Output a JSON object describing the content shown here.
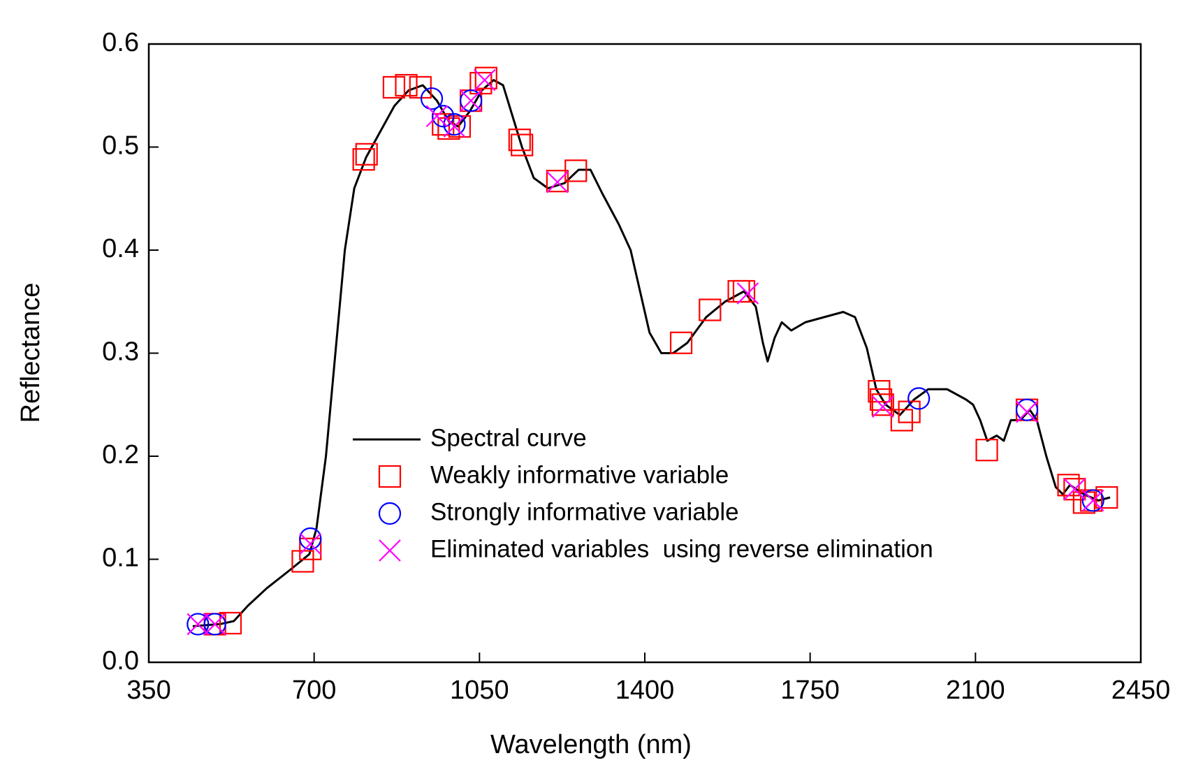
{
  "chart_data": {
    "type": "line",
    "xlabel": "Wavelength (nm)",
    "ylabel": "Reflectance",
    "xlim": [
      350,
      2450
    ],
    "xticks": [
      350,
      700,
      1050,
      1400,
      1750,
      2100,
      2450
    ],
    "ylim": [
      0,
      0.6
    ],
    "yticks": [
      {
        "value": 0,
        "label": "0.0"
      },
      0.1,
      0.2,
      0.3,
      0.4,
      0.5,
      0.6
    ],
    "legend": "inside-lower-center",
    "series": [
      {
        "name": "Spectral curve",
        "kind": "line",
        "color": "#000000",
        "x": [
          443,
          470,
          500,
          530,
          560,
          600,
          650,
          690,
          705,
          725,
          745,
          765,
          785,
          810,
          840,
          870,
          900,
          930,
          960,
          985,
          1005,
          1030,
          1055,
          1080,
          1100,
          1120,
          1140,
          1165,
          1195,
          1230,
          1260,
          1285,
          1310,
          1345,
          1370,
          1390,
          1410,
          1435,
          1460,
          1490,
          1530,
          1570,
          1610,
          1635,
          1650,
          1660,
          1675,
          1690,
          1710,
          1740,
          1780,
          1820,
          1845,
          1870,
          1890,
          1910,
          1940,
          1970,
          2000,
          2040,
          2080,
          2095,
          2110,
          2125,
          2145,
          2160,
          2175,
          2195,
          2215,
          2230,
          2250,
          2270,
          2285,
          2300,
          2330,
          2360,
          2385
        ],
        "values": [
          0.035,
          0.036,
          0.037,
          0.04,
          0.055,
          0.072,
          0.09,
          0.105,
          0.13,
          0.2,
          0.3,
          0.4,
          0.46,
          0.49,
          0.515,
          0.54,
          0.555,
          0.56,
          0.545,
          0.525,
          0.52,
          0.535,
          0.555,
          0.565,
          0.56,
          0.53,
          0.5,
          0.47,
          0.46,
          0.465,
          0.478,
          0.478,
          0.455,
          0.425,
          0.4,
          0.36,
          0.32,
          0.3,
          0.3,
          0.31,
          0.335,
          0.35,
          0.36,
          0.345,
          0.31,
          0.292,
          0.315,
          0.33,
          0.322,
          0.33,
          0.335,
          0.34,
          0.335,
          0.305,
          0.265,
          0.25,
          0.24,
          0.255,
          0.265,
          0.265,
          0.255,
          0.25,
          0.235,
          0.215,
          0.22,
          0.215,
          0.235,
          0.235,
          0.245,
          0.235,
          0.2,
          0.17,
          0.163,
          0.172,
          0.163,
          0.157,
          0.16
        ]
      },
      {
        "name": "Weakly informative variable",
        "kind": "square",
        "color": "#ff0000",
        "x": [
          490,
          523,
          676,
          692,
          805,
          811,
          869,
          895,
          925,
          973,
          985,
          1008,
          1032,
          1053,
          1064,
          1135,
          1140,
          1215,
          1254,
          1477,
          1538,
          1599,
          1610,
          1896,
          1900,
          1904,
          1944,
          1960,
          2124,
          2209,
          2297,
          2310,
          2330,
          2345,
          2378
        ],
        "values": [
          0.037,
          0.038,
          0.098,
          0.11,
          0.488,
          0.493,
          0.558,
          0.56,
          0.558,
          0.522,
          0.518,
          0.52,
          0.545,
          0.562,
          0.567,
          0.507,
          0.502,
          0.467,
          0.477,
          0.31,
          0.342,
          0.36,
          0.36,
          0.263,
          0.255,
          0.25,
          0.235,
          0.243,
          0.206,
          0.245,
          0.172,
          0.168,
          0.155,
          0.157,
          0.16
        ]
      },
      {
        "name": "Strongly informative variable",
        "kind": "circle",
        "color": "#0000ff",
        "x": [
          454,
          490,
          692,
          949,
          973,
          997,
          1032,
          1980,
          2209,
          2349
        ],
        "values": [
          0.037,
          0.037,
          0.12,
          0.547,
          0.53,
          0.522,
          0.545,
          0.256,
          0.245,
          0.157
        ]
      },
      {
        "name": "Eliminated variables  using reverse elimination",
        "kind": "cross",
        "color": "#ff00ff",
        "x": [
          454,
          490,
          692,
          960,
          997,
          1032,
          1061,
          1215,
          1618,
          1904,
          2209,
          2310,
          2349
        ],
        "values": [
          0.037,
          0.037,
          0.115,
          0.53,
          0.52,
          0.545,
          0.565,
          0.466,
          0.358,
          0.248,
          0.243,
          0.168,
          0.157
        ]
      }
    ]
  }
}
